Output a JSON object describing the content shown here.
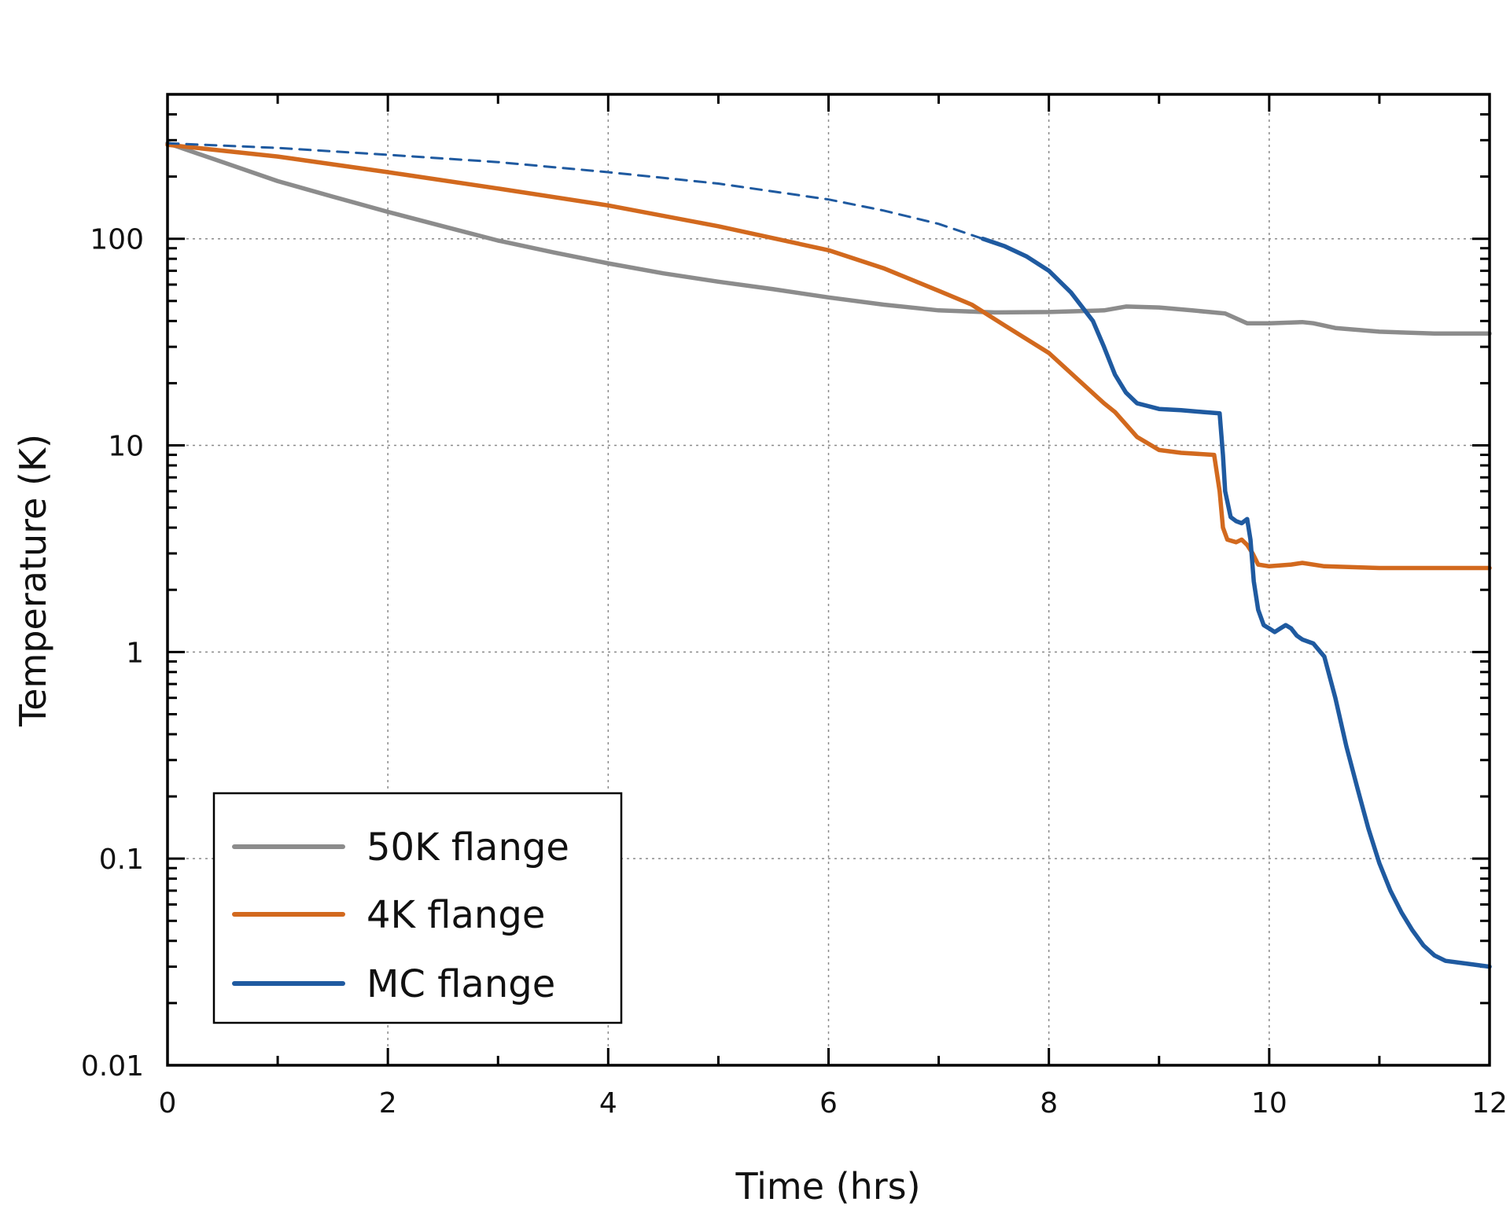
{
  "chart_data": {
    "type": "line",
    "title": "",
    "xlabel": "Time (hrs)",
    "ylabel": "Temperature (K)",
    "xlim": [
      0,
      12
    ],
    "ylim": [
      0.01,
      500
    ],
    "yscale": "log",
    "grid": true,
    "legend_position": "bottom-left",
    "x_ticks": [
      0,
      2,
      4,
      6,
      8,
      10,
      12
    ],
    "x_tick_labels": [
      "0",
      "2",
      "4",
      "6",
      "8",
      "10",
      "12"
    ],
    "y_ticks": [
      0.01,
      0.1,
      1,
      10,
      100
    ],
    "y_tick_labels": [
      "0.01",
      "0.1",
      "1",
      "10",
      "100"
    ],
    "series": [
      {
        "name": "50K flange",
        "color": "#8c8c8c",
        "style": "solid",
        "x": [
          0,
          0.5,
          1,
          1.5,
          2,
          2.5,
          3,
          3.5,
          4,
          4.5,
          5,
          5.5,
          6,
          6.5,
          7,
          7.5,
          8,
          8.5,
          8.7,
          9,
          9.3,
          9.6,
          9.8,
          10,
          10.3,
          10.4,
          10.6,
          11,
          11.5,
          12
        ],
        "y": [
          290,
          235,
          190,
          160,
          135,
          115,
          98,
          86,
          76,
          68,
          62,
          57,
          52,
          48,
          45,
          44,
          44.2,
          45,
          47,
          46.5,
          45,
          43.5,
          39,
          39,
          39.5,
          39,
          37,
          35.5,
          34.8,
          34.8
        ]
      },
      {
        "name": "4K flange",
        "color": "#d2691e",
        "style": "solid",
        "x": [
          0,
          1,
          2,
          3,
          4,
          5,
          6,
          6.5,
          7,
          7.3,
          7.6,
          8,
          8.3,
          8.5,
          8.6,
          8.8,
          9,
          9.2,
          9.5,
          9.55,
          9.58,
          9.62,
          9.7,
          9.75,
          9.8,
          9.85,
          9.9,
          10,
          10.2,
          10.3,
          10.5,
          11,
          11.5,
          12
        ],
        "y": [
          285,
          250,
          210,
          175,
          145,
          115,
          88,
          72,
          56,
          48,
          38,
          28,
          20,
          16,
          14.5,
          11,
          9.5,
          9.2,
          9.0,
          6,
          4,
          3.5,
          3.4,
          3.5,
          3.3,
          3.0,
          2.65,
          2.6,
          2.65,
          2.7,
          2.6,
          2.55,
          2.55,
          2.55
        ]
      },
      {
        "name": "MC flange",
        "color": "#1f5aa0",
        "style": "dashed",
        "x": [
          0,
          1,
          2,
          3,
          4,
          5,
          6,
          6.5,
          7,
          7.4
        ],
        "y": [
          290,
          275,
          255,
          235,
          210,
          185,
          155,
          137,
          118,
          100
        ]
      },
      {
        "name": "MC flange",
        "color": "#1f5aa0",
        "style": "solid",
        "x": [
          7.4,
          7.6,
          7.8,
          8,
          8.2,
          8.4,
          8.5,
          8.6,
          8.7,
          8.8,
          8.9,
          9,
          9.2,
          9.4,
          9.55,
          9.58,
          9.6,
          9.65,
          9.7,
          9.75,
          9.8,
          9.83,
          9.86,
          9.9,
          9.95,
          10,
          10.05,
          10.1,
          10.15,
          10.2,
          10.25,
          10.3,
          10.4,
          10.5,
          10.6,
          10.7,
          10.8,
          10.9,
          11,
          11.1,
          11.2,
          11.3,
          11.4,
          11.5,
          11.6,
          11.8,
          12
        ],
        "y": [
          100,
          92,
          82,
          70,
          55,
          40,
          30,
          22,
          18,
          16,
          15.5,
          15,
          14.8,
          14.5,
          14.3,
          9,
          6,
          4.5,
          4.3,
          4.2,
          4.4,
          3.5,
          2.2,
          1.6,
          1.35,
          1.3,
          1.25,
          1.3,
          1.35,
          1.3,
          1.2,
          1.15,
          1.1,
          0.95,
          0.6,
          0.35,
          0.22,
          0.14,
          0.095,
          0.07,
          0.055,
          0.045,
          0.038,
          0.034,
          0.032,
          0.031,
          0.03
        ]
      }
    ],
    "legend": [
      {
        "label": "50K flange",
        "color": "#8c8c8c"
      },
      {
        "label": "4K flange",
        "color": "#d2691e"
      },
      {
        "label": "MC flange",
        "color": "#1f5aa0"
      }
    ]
  }
}
